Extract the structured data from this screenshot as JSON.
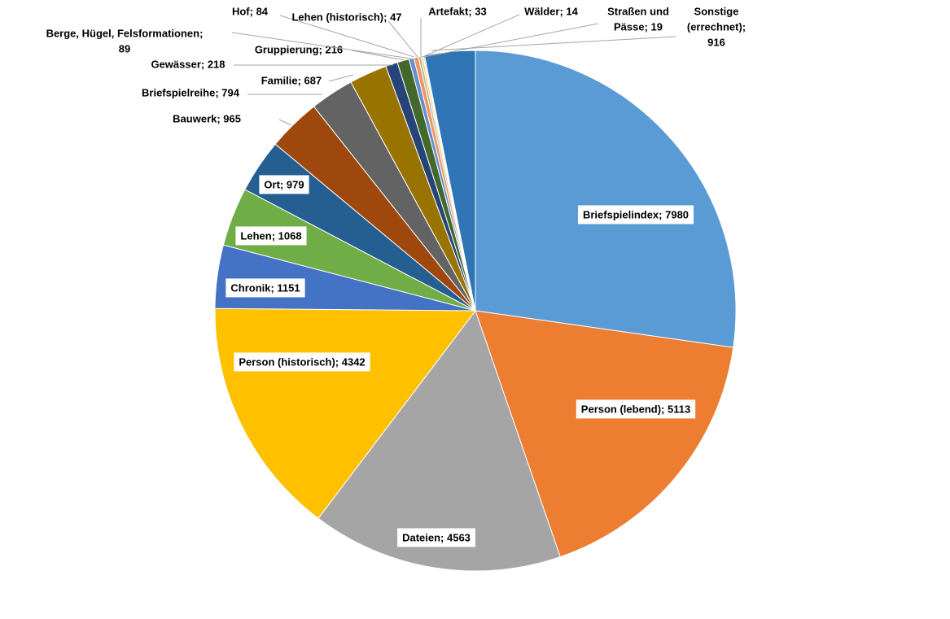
{
  "chart_data": {
    "type": "pie",
    "title": "",
    "label_format": "{name}; {value}",
    "slices": [
      {
        "name": "Briefspielindex",
        "value": 7980,
        "color": "#5b9bd5"
      },
      {
        "name": "Person (lebend)",
        "value": 5113,
        "color": "#ed7d31"
      },
      {
        "name": "Dateien",
        "value": 4563,
        "color": "#a5a5a5"
      },
      {
        "name": "Person (historisch)",
        "value": 4342,
        "color": "#ffc000"
      },
      {
        "name": "Chronik",
        "value": 1151,
        "color": "#4472c4"
      },
      {
        "name": "Lehen",
        "value": 1068,
        "color": "#70ad47"
      },
      {
        "name": "Ort",
        "value": 979,
        "color": "#255e91"
      },
      {
        "name": "Bauwerk",
        "value": 965,
        "color": "#9e480e"
      },
      {
        "name": "Briefspielreihe",
        "value": 794,
        "color": "#636363"
      },
      {
        "name": "Familie",
        "value": 687,
        "color": "#997300"
      },
      {
        "name": "Gewässer",
        "value": 218,
        "color": "#264478"
      },
      {
        "name": "Gruppierung",
        "value": 216,
        "color": "#43682b"
      },
      {
        "name": "Berge, Hügel, Felsformationen",
        "value": 89,
        "color": "#698ed0"
      },
      {
        "name": "Hof",
        "value": 84,
        "color": "#f1975a"
      },
      {
        "name": "Lehen (historisch)",
        "value": 47,
        "color": "#b7b7b7"
      },
      {
        "name": "Artefakt",
        "value": 33,
        "color": "#ffcd33"
      },
      {
        "name": "Wälder",
        "value": 14,
        "color": "#8cc168"
      },
      {
        "name": "Straßen und Pässe",
        "value": 19,
        "color": "#327dc2"
      },
      {
        "name": "Sonstige (errechnet)",
        "value": 916,
        "color": "#2f75b5"
      }
    ]
  }
}
